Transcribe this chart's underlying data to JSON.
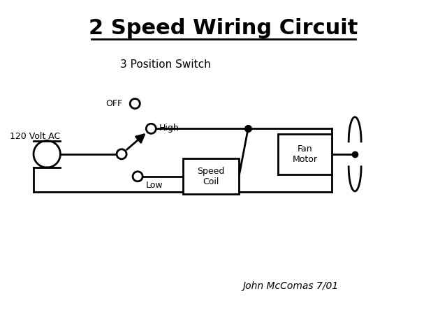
{
  "title": "2 Speed Wiring Circuit",
  "title_fontsize": 22,
  "bg_color": "#ffffff",
  "line_color": "#000000",
  "line_width": 2.0,
  "switch_label": "3 Position Switch",
  "voltage_label": "120 Volt AC",
  "off_label": "OFF",
  "high_label": "High",
  "low_label": "Low",
  "speed_coil_label": "Speed\nCoil",
  "fan_motor_label": "Fan\nMotor",
  "credit_label": "John McComas 7/01",
  "canvas_xlim": [
    0,
    10
  ],
  "canvas_ylim": [
    0,
    7.5
  ]
}
